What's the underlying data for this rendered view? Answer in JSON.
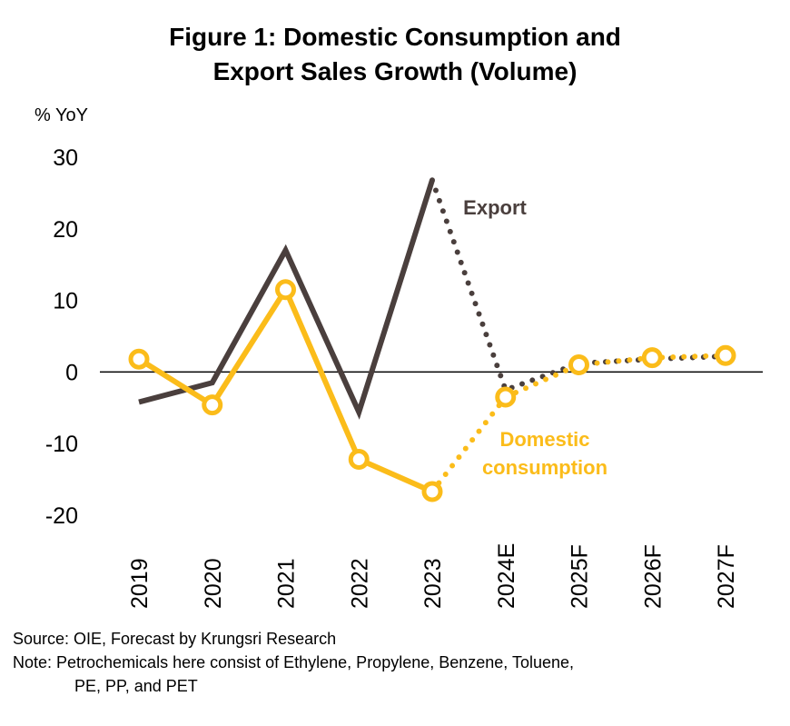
{
  "figure": {
    "title_line1": "Figure 1: Domestic Consumption and",
    "title_line2": "Export Sales Growth (Volume)"
  },
  "chart_data": {
    "type": "line",
    "title": "Figure 1: Domestic Consumption and Export Sales Growth (Volume)",
    "ylabel": "% YoY",
    "ylim": [
      -20,
      30
    ],
    "yticks": [
      30,
      20,
      10,
      0,
      -10,
      -20
    ],
    "categories": [
      "2019",
      "2020",
      "2021",
      "2022",
      "2023",
      "2024E",
      "2025F",
      "2026F",
      "2027F"
    ],
    "series": [
      {
        "name": "Export",
        "color": "#4a3f3d",
        "values": [
          -4.2,
          -1.5,
          17.0,
          -5.6,
          26.8,
          -2.5,
          1.2,
          1.8,
          2.2
        ],
        "actual_through_index": 4,
        "markers": false
      },
      {
        "name": "Domestic consumption",
        "color": "#fbbc1a",
        "values": [
          1.8,
          -4.6,
          11.5,
          -12.2,
          -16.7,
          -3.5,
          1.0,
          2.0,
          2.3
        ],
        "actual_through_index": 4,
        "markers": true
      }
    ],
    "annotations": [
      {
        "text": "Export",
        "series": 0
      },
      {
        "text": "Domestic",
        "series": 1
      },
      {
        "text": "consumption",
        "series": 1
      }
    ],
    "grid": false,
    "legend": "none"
  },
  "footer": {
    "source": "Source: OIE, Forecast by Krungsri Research",
    "note_line1": "Note: Petrochemicals here consist of Ethylene, Propylene, Benzene, Toluene,",
    "note_line2": "PE, PP, and PET"
  }
}
